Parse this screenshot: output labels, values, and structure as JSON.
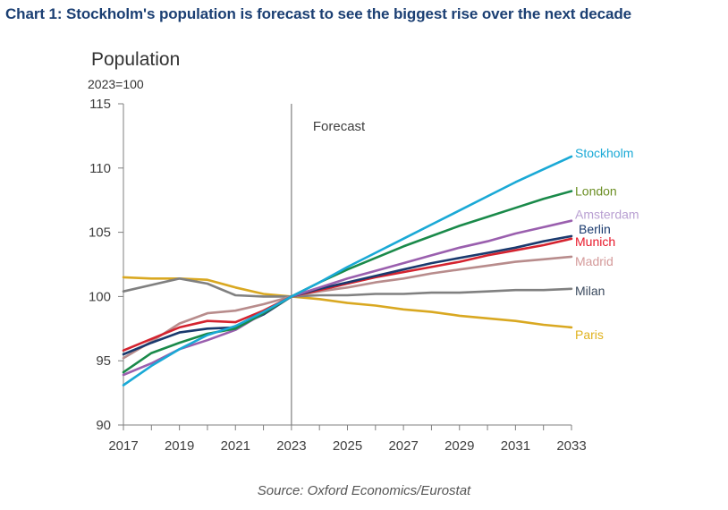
{
  "title": "Chart 1: Stockholm's population is forecast to see the biggest rise over the next decade",
  "source": "Source: Oxford Economics/Eurostat",
  "chart_data": {
    "type": "line",
    "title": "Chart 1: Stockholm's population is forecast to see the biggest rise over the next decade",
    "ylabel": "Population",
    "ysublabel": "2023=100",
    "xlabel": "",
    "x": [
      2017,
      2018,
      2019,
      2020,
      2021,
      2022,
      2023,
      2024,
      2025,
      2026,
      2027,
      2028,
      2029,
      2030,
      2031,
      2032,
      2033
    ],
    "xticks": [
      "2017",
      "2019",
      "2021",
      "2023",
      "2025",
      "2027",
      "2029",
      "2031",
      "2033"
    ],
    "yticks": [
      "90",
      "95",
      "100",
      "105",
      "110",
      "115"
    ],
    "ylim": [
      90,
      115
    ],
    "xlim": [
      2017,
      2033
    ],
    "grid": false,
    "annotation": {
      "text": "Forecast",
      "x": 2023
    },
    "legend": "inline-right",
    "series": [
      {
        "name": "Stockholm",
        "color": "#1aa9d6",
        "label_color": "#1aa9d6",
        "values": [
          93.1,
          94.6,
          95.9,
          97.0,
          97.7,
          98.8,
          100.0,
          101.1,
          102.3,
          103.4,
          104.5,
          105.6,
          106.7,
          107.8,
          108.9,
          109.9,
          110.9
        ]
      },
      {
        "name": "London",
        "color": "#1a8a4a",
        "label_color": "#6b8e23",
        "values": [
          94.1,
          95.6,
          96.4,
          97.1,
          97.5,
          98.7,
          100.0,
          101.1,
          102.1,
          103.0,
          103.9,
          104.7,
          105.5,
          106.2,
          106.9,
          107.6,
          108.2
        ]
      },
      {
        "name": "Amsterdam",
        "color": "#9a5fae",
        "label_color": "#b9a0d2",
        "values": [
          93.9,
          94.8,
          95.9,
          96.6,
          97.4,
          98.7,
          100.0,
          100.7,
          101.4,
          102.0,
          102.6,
          103.2,
          103.8,
          104.3,
          104.9,
          105.4,
          105.9
        ]
      },
      {
        "name": "Berlin",
        "color": "#1a3a6e",
        "label_color": "#1a3a6e",
        "values": [
          95.5,
          96.4,
          97.2,
          97.5,
          97.6,
          98.6,
          100.0,
          100.6,
          101.1,
          101.6,
          102.1,
          102.6,
          103.0,
          103.4,
          103.8,
          104.3,
          104.7
        ]
      },
      {
        "name": "Munich",
        "color": "#d4232f",
        "label_color": "#e8182a",
        "values": [
          95.8,
          96.7,
          97.6,
          98.1,
          98.0,
          98.9,
          100.0,
          100.5,
          101.0,
          101.5,
          101.9,
          102.3,
          102.7,
          103.2,
          103.6,
          104.0,
          104.5
        ]
      },
      {
        "name": "Madrid",
        "color": "#b88c8c",
        "label_color": "#d49a9a",
        "values": [
          95.2,
          96.5,
          97.9,
          98.7,
          98.9,
          99.4,
          100.0,
          100.4,
          100.7,
          101.1,
          101.4,
          101.8,
          102.1,
          102.4,
          102.7,
          102.9,
          103.1
        ]
      },
      {
        "name": "Milan",
        "color": "#808080",
        "label_color": "#3b4a5e",
        "values": [
          100.4,
          100.9,
          101.4,
          101.0,
          100.1,
          100.0,
          100.0,
          100.1,
          100.1,
          100.2,
          100.2,
          100.3,
          100.3,
          100.4,
          100.5,
          100.5,
          100.6
        ]
      },
      {
        "name": "Paris",
        "color": "#d9a821",
        "label_color": "#e0b21e",
        "values": [
          101.5,
          101.4,
          101.4,
          101.3,
          100.7,
          100.2,
          100.0,
          99.8,
          99.5,
          99.3,
          99.0,
          98.8,
          98.5,
          98.3,
          98.1,
          97.8,
          97.6
        ]
      }
    ]
  }
}
